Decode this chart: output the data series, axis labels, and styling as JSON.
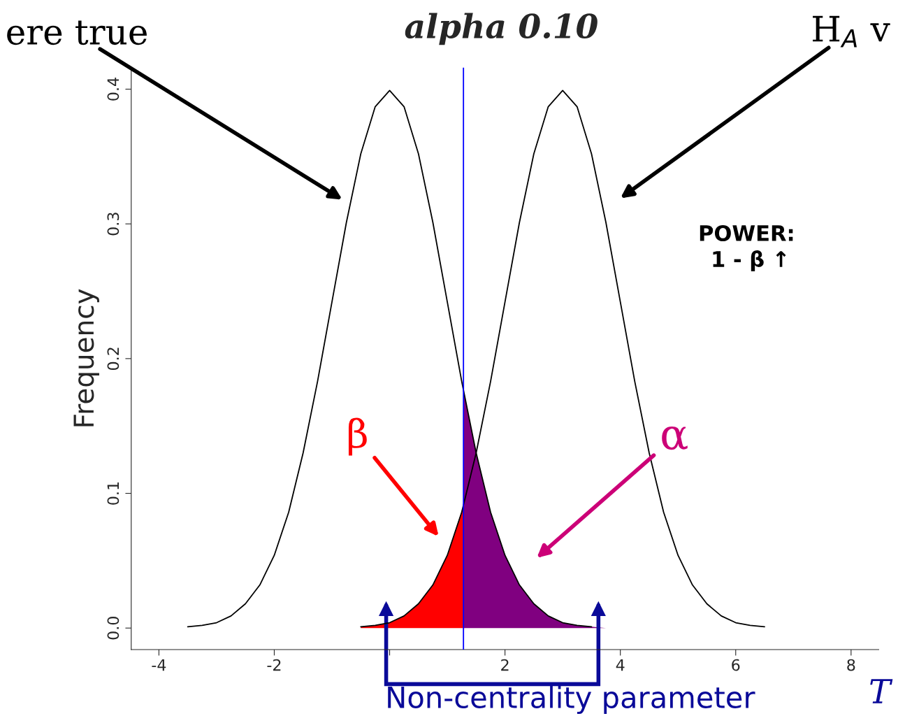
{
  "chart_data": {
    "type": "line",
    "title": "alpha 0.10",
    "ylabel": "Frequency",
    "xlim": [
      -4.48,
      8.48
    ],
    "ylim": [
      -0.016,
      0.416
    ],
    "xticks": [
      -4,
      -2,
      {
        "value": 0,
        "label": null
      },
      2,
      4,
      6,
      8
    ],
    "yticks": [
      {
        "value": 0,
        "label": "0.0"
      },
      0.1,
      0.2,
      0.3,
      0.4
    ],
    "series": [
      {
        "color": "#000000",
        "x": [
          -3.5,
          -3.25,
          -3,
          -2.75,
          -2.5,
          -2.25,
          -2,
          -1.75,
          -1.5,
          -1.25,
          -1,
          -0.75,
          -0.5,
          -0.25,
          0,
          0.25,
          0.5,
          0.75,
          1,
          1.25,
          1.5,
          1.75,
          2,
          2.25,
          2.5,
          2.75,
          3,
          3.25,
          3.5
        ],
        "values": [
          0.001,
          0.002,
          0.004,
          0.009,
          0.018,
          0.032,
          0.054,
          0.086,
          0.13,
          0.183,
          0.242,
          0.301,
          0.352,
          0.387,
          0.399,
          0.387,
          0.352,
          0.301,
          0.242,
          0.183,
          0.13,
          0.086,
          0.054,
          0.032,
          0.018,
          0.009,
          0.004,
          0.002,
          0.001
        ]
      },
      {
        "color": "#000000",
        "x": [
          -0.5,
          -0.25,
          0,
          0.25,
          0.5,
          0.75,
          1,
          1.25,
          1.5,
          1.75,
          2,
          2.25,
          2.5,
          2.75,
          3,
          3.25,
          3.5,
          3.75,
          4,
          4.25,
          4.5,
          4.75,
          5,
          5.25,
          5.5,
          5.75,
          6,
          6.25,
          6.5
        ],
        "values": [
          0.001,
          0.002,
          0.004,
          0.009,
          0.018,
          0.032,
          0.054,
          0.086,
          0.13,
          0.183,
          0.242,
          0.301,
          0.352,
          0.387,
          0.399,
          0.387,
          0.352,
          0.301,
          0.242,
          0.183,
          0.13,
          0.086,
          0.054,
          0.032,
          0.018,
          0.009,
          0.004,
          0.002,
          0.001
        ]
      },
      {
        "type": "area",
        "color": "#ff0000",
        "x": [
          -0.5,
          -0.25,
          0,
          0.25,
          0.5,
          0.75,
          1,
          1.28
        ],
        "values": [
          0.001,
          0.002,
          0.004,
          0.009,
          0.018,
          0.032,
          0.054,
          0.091
        ]
      },
      {
        "type": "area",
        "color": "#800080",
        "x": [
          1.28,
          1.5,
          1.75,
          2,
          2.25,
          2.5,
          2.75,
          3,
          3.25,
          3.5,
          3.75
        ],
        "values": [
          0.176,
          0.13,
          0.086,
          0.054,
          0.032,
          0.018,
          0.009,
          0.004,
          0.002,
          0.001,
          0.0
        ]
      }
    ],
    "ref_lines": [
      {
        "axis": "x",
        "value": 1.28,
        "color": "#0000ff",
        "line_style": "solid"
      }
    ],
    "annotations": [
      "ere true",
      "H$_{A}$ v",
      "β",
      "α",
      "POWER:\n 1 - β ↑",
      "Non-centrality parameter",
      "T"
    ],
    "grid": false
  }
}
